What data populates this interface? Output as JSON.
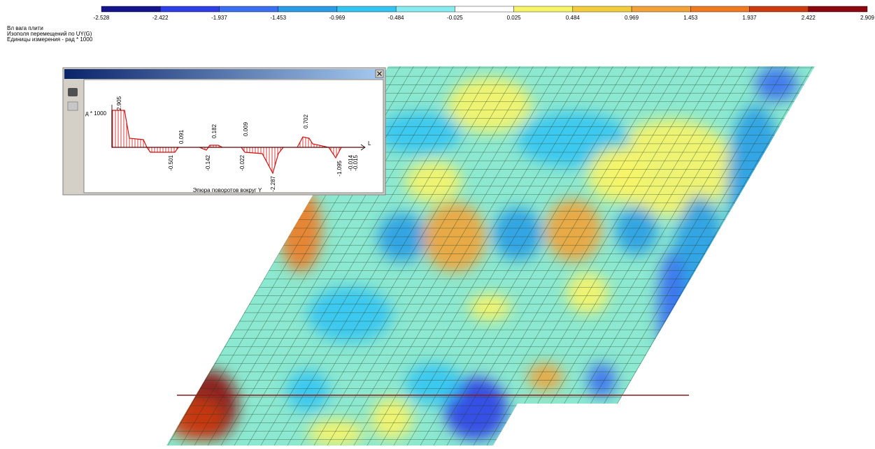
{
  "header": {
    "lines": [
      "Вл вага плити",
      "Изополя  перемещений по UY(G)",
      "Единицы измерения - рад * 1000"
    ]
  },
  "scale": {
    "labels": [
      "-2.528",
      "-2.422",
      "-1.937",
      "-1.453",
      "-0.969",
      "-0.484",
      "-0.025",
      "0.025",
      "0.484",
      "0.969",
      "1.453",
      "1.937",
      "2.422",
      "2.909"
    ],
    "colors": [
      "#14148c",
      "#2f3fe6",
      "#3b6fef",
      "#2a9ce6",
      "#34c4f2",
      "#86ecf2",
      "#ffffff",
      "#f8f468",
      "#f2cc3a",
      "#f2a236",
      "#f07a22",
      "#cc3a10",
      "#8c0810"
    ]
  },
  "diagram": {
    "axis_label": "д * 1000",
    "axis_end": "L",
    "title": "Эпюра поворотов  вокруг Y",
    "labels": [
      "2.905",
      "0.091",
      "0.182",
      "0.009",
      "0.702",
      "-0.501",
      "-0.142",
      "-0.022",
      "-2.287",
      "-1.095",
      "-0.014",
      "-0.015"
    ]
  }
}
